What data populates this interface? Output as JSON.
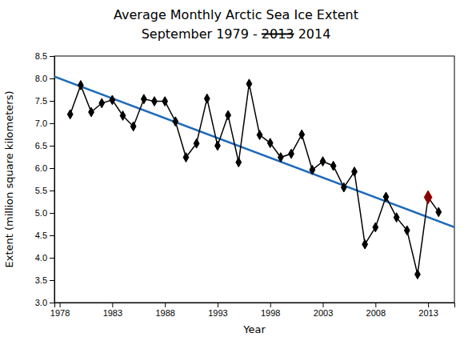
{
  "chart_data": {
    "type": "line",
    "title": "Average Monthly Arctic Sea Ice Extent",
    "subtitle": {
      "prefix": "September 1979 - ",
      "strikethrough": "2013",
      "suffix": " 2014"
    },
    "x_label": "Year",
    "y_label": "Extent (million square kilometers)",
    "x": [
      1979,
      1980,
      1981,
      1982,
      1983,
      1984,
      1985,
      1986,
      1987,
      1988,
      1989,
      1990,
      1991,
      1992,
      1993,
      1994,
      1995,
      1996,
      1997,
      1998,
      1999,
      2000,
      2001,
      2002,
      2003,
      2004,
      2005,
      2006,
      2007,
      2008,
      2009,
      2010,
      2011,
      2012,
      2013,
      2014
    ],
    "series": [
      {
        "values": [
          7.2,
          7.85,
          7.25,
          7.45,
          7.52,
          7.17,
          6.93,
          7.54,
          7.49,
          7.49,
          7.04,
          6.24,
          6.55,
          7.55,
          6.5,
          7.18,
          6.13,
          7.88,
          6.74,
          6.56,
          6.24,
          6.32,
          6.75,
          5.96,
          6.15,
          6.05,
          5.57,
          5.92,
          4.3,
          4.68,
          5.36,
          4.9,
          4.61,
          3.63,
          5.35,
          5.02
        ],
        "color": "#000000",
        "marker": "diamond",
        "line_style": "solid"
      }
    ],
    "highlight": {
      "x": 2013,
      "color": "#8B0000"
    },
    "trend": {
      "x": [
        1977.5,
        2015.5
      ],
      "values": [
        8.0433,
        4.6828
      ],
      "color": "#1e6bb8"
    },
    "xlim": [
      1977.5,
      2015.5
    ],
    "ylim": [
      3.0,
      8.5
    ],
    "xticks": [
      1978,
      1983,
      1988,
      1993,
      1998,
      2003,
      2008,
      2013
    ],
    "yticks": [
      {
        "value": 3.0,
        "label": "3.0"
      },
      3.5,
      {
        "value": 4.0,
        "label": "4.0"
      },
      4.5,
      {
        "value": 5.0,
        "label": "5.0"
      },
      5.5,
      {
        "value": 6.0,
        "label": "6.0"
      },
      6.5,
      {
        "value": 7.0,
        "label": "7.0"
      },
      7.5,
      {
        "value": 8.0,
        "label": "8.0"
      },
      8.5
    ],
    "grid": false
  }
}
